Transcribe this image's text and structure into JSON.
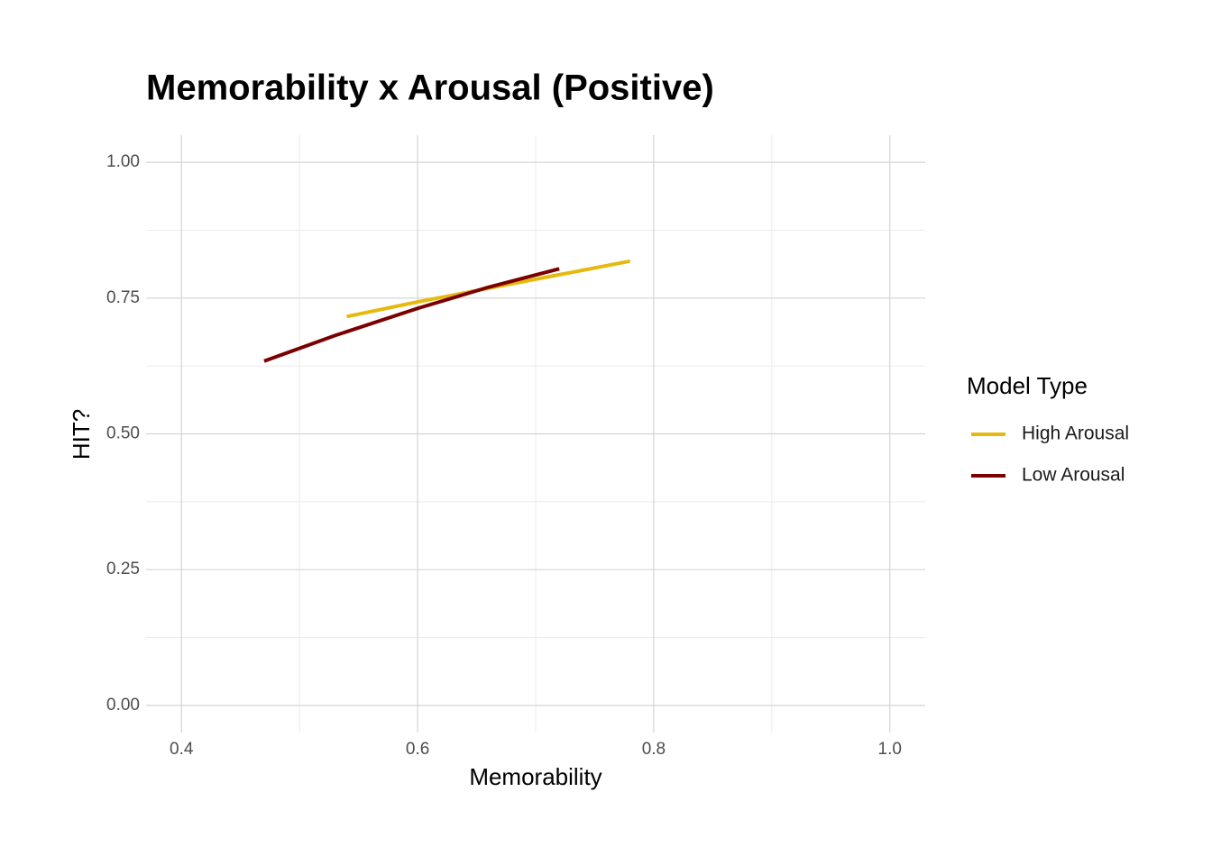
{
  "chart_data": {
    "type": "line",
    "title": "Memorability x Arousal (Positive)",
    "x_label": "Memorability",
    "y_label": "HIT?",
    "legend_title": "Model Type",
    "legend_position": "right",
    "series": [
      {
        "name": "High Arousal",
        "color": "#e6b90f",
        "x": [
          0.54,
          0.6,
          0.66,
          0.72,
          0.78
        ],
        "values": [
          0.716,
          0.743,
          0.768,
          0.793,
          0.818
        ]
      },
      {
        "name": "Low Arousal",
        "color": "#7a0000",
        "x": [
          0.47,
          0.53,
          0.6,
          0.66,
          0.72
        ],
        "values": [
          0.634,
          0.681,
          0.731,
          0.77,
          0.804
        ]
      }
    ],
    "xlim": [
      0.37,
      1.03
    ],
    "ylim": [
      -0.05,
      1.05
    ],
    "xticks": [
      0.4,
      0.6,
      0.8,
      {
        "value": 1,
        "label": "1.0"
      }
    ],
    "yticks": [
      {
        "value": 0,
        "label": "0.00"
      },
      {
        "value": 0.25,
        "label": "0.25"
      },
      {
        "value": 0.5,
        "label": "0.50"
      },
      {
        "value": 0.75,
        "label": "0.75"
      },
      {
        "value": 1,
        "label": "1.00"
      }
    ],
    "xminor": [
      0.5,
      0.7,
      0.9
    ],
    "yminor": [
      0.125,
      0.375,
      0.625,
      0.875
    ],
    "grid": true
  }
}
